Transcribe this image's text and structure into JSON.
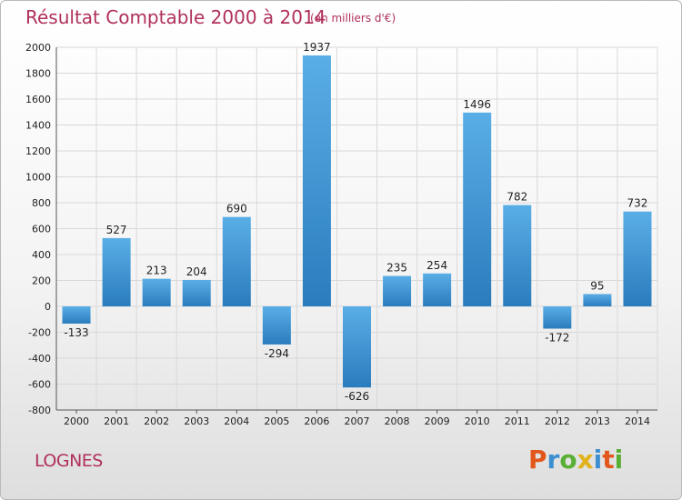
{
  "header": {
    "title": "Résultat Comptable 2000 à 2014",
    "subtitle": "(en milliers d'€)"
  },
  "footer": {
    "city": "LOGNES",
    "brand": "Proxiti",
    "brand_colors": [
      "#e2581c",
      "#3d8fcf",
      "#59b035",
      "#e2b21b",
      "#3d8fcf",
      "#e2581c",
      "#59b035"
    ]
  },
  "colors": {
    "bar_light": "#5aaee6",
    "bar_dark": "#2a7cbd",
    "grid": "#d9d9d9",
    "axis_text": "#222222",
    "title": "#b0305a"
  },
  "chart_data": {
    "type": "bar",
    "categories": [
      "2000",
      "2001",
      "2002",
      "2003",
      "2004",
      "2005",
      "2006",
      "2007",
      "2008",
      "2009",
      "2010",
      "2011",
      "2012",
      "2013",
      "2014"
    ],
    "values": [
      -133,
      527,
      213,
      204,
      690,
      -294,
      1937,
      -626,
      235,
      254,
      1496,
      782,
      -172,
      95,
      732
    ],
    "data_labels": [
      "-133",
      "527",
      "213",
      "204",
      "690",
      "-294",
      "1937",
      "-626",
      "235",
      "254",
      "1496",
      "782",
      "-172",
      "95",
      "732"
    ],
    "title": "Résultat Comptable 2000 à 2014",
    "xlabel": "",
    "ylabel": "",
    "ylim": [
      -800,
      2000
    ],
    "yticks": [
      -800,
      -600,
      -400,
      -200,
      0,
      200,
      400,
      600,
      800,
      1000,
      1200,
      1400,
      1600,
      1800,
      2000
    ],
    "grid": true,
    "legend": "none"
  }
}
